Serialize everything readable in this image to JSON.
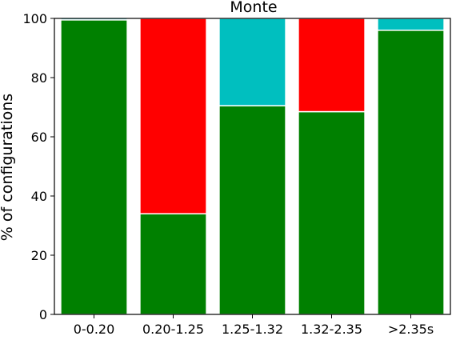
{
  "chart_data": {
    "type": "bar",
    "stacked": true,
    "title": "Monte",
    "xlabel": "",
    "ylabel": "% of configurations",
    "ylim": [
      0,
      100
    ],
    "yticks": [
      0,
      20,
      40,
      60,
      80,
      100
    ],
    "categories": [
      "0-0.20",
      "0.20-1.25",
      "1.25-1.32",
      "1.32-2.35",
      ">2.35s"
    ],
    "grid": false,
    "series": [
      {
        "color": "#008000",
        "values": [
          99.5,
          34,
          70.5,
          68.5,
          96
        ]
      },
      {
        "color": "#ff0000",
        "values": [
          0,
          66,
          0,
          31.5,
          0
        ]
      },
      {
        "color": "#00bfbf",
        "values": [
          0.5,
          0,
          29.5,
          0,
          4
        ]
      }
    ]
  }
}
